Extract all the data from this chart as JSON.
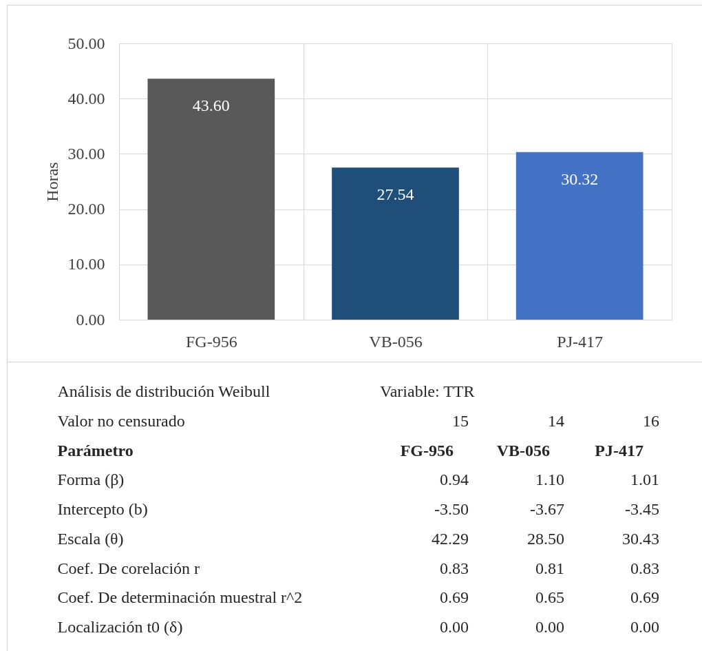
{
  "chart_data": [
    {
      "type": "bar",
      "categories": [
        "FG-956",
        "VB-056",
        "PJ-417"
      ],
      "values": [
        43.6,
        27.54,
        30.32
      ],
      "colors": [
        "#595959",
        "#1f4e79",
        "#4472c4"
      ],
      "value_labels": [
        "43.60",
        "27.54",
        "30.32"
      ],
      "ylabel": "Horas",
      "ylim": [
        0,
        50
      ],
      "yticks": [
        {
          "value": 0,
          "label": "0.00"
        },
        {
          "value": 10,
          "label": "10.00"
        },
        {
          "value": 20,
          "label": "20.00"
        },
        {
          "value": 30,
          "label": "30.00"
        },
        {
          "value": 40,
          "label": "40.00"
        },
        {
          "value": 50,
          "label": "50.00"
        }
      ],
      "grid": true
    },
    {
      "type": "other",
      "title": "Análisis de distribución Weibull",
      "subtitle": "Variable: TTR",
      "annotations": [
        "Valor no censurado",
        "15",
        "14",
        "16",
        "Parámetro",
        "FG-956",
        "VB-056",
        "PJ-417",
        "Forma (β)",
        "0.94",
        "1.10",
        "1.01",
        "Intercepto (b)",
        "-3.50",
        "-3.67",
        "-3.45",
        "Escala (θ)",
        "42.29",
        "28.50",
        "30.43",
        "Coef. De corelación r",
        "0.83",
        "0.81",
        "0.83",
        "Coef. De determinación muestral r^2",
        "0.69",
        "0.65",
        "0.69",
        "Localización t0 (δ)",
        "0.00",
        "0.00",
        "0.00"
      ]
    }
  ]
}
